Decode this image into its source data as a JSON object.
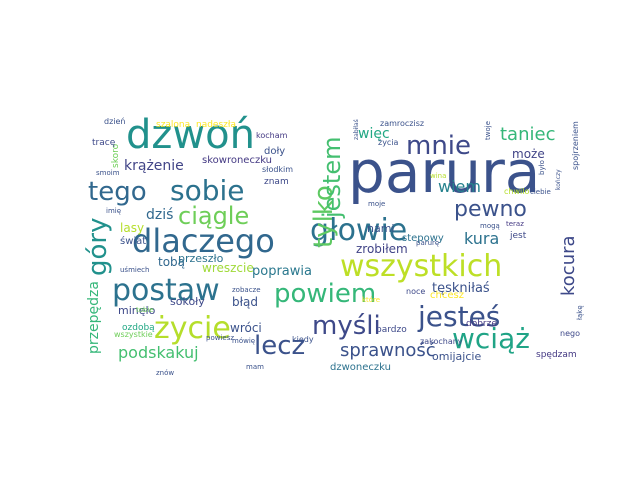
{
  "word_cloud": {
    "words": [
      {
        "text": "parura",
        "color": "#3b528b"
      },
      {
        "text": "dzwoń",
        "color": "#21918c"
      },
      {
        "text": "wszystkich",
        "color": "#bddf26"
      },
      {
        "text": "dlaczego",
        "color": "#31688e"
      },
      {
        "text": "głowie",
        "color": "#2c728e"
      },
      {
        "text": "postaw",
        "color": "#2c728e"
      },
      {
        "text": "sobie",
        "color": "#2c728e"
      },
      {
        "text": "tylko",
        "color": "#5ec962"
      },
      {
        "text": "jesteś",
        "color": "#3b528b"
      },
      {
        "text": "życie",
        "color": "#b5de2b"
      },
      {
        "text": "myśli",
        "color": "#3e4989"
      },
      {
        "text": "lecz",
        "color": "#3b528b"
      },
      {
        "text": "wciąż",
        "color": "#20a486"
      },
      {
        "text": "powiem",
        "color": "#35b779"
      },
      {
        "text": "tego",
        "color": "#31688e"
      },
      {
        "text": "ciągle",
        "color": "#6ece58"
      },
      {
        "text": "góry",
        "color": "#21918c"
      },
      {
        "text": "jestem",
        "color": "#44bf70"
      },
      {
        "text": "mnie",
        "color": "#3e4989"
      },
      {
        "text": "pewno",
        "color": "#3b528b"
      },
      {
        "text": "taniec",
        "color": "#35b779"
      },
      {
        "text": "kocura",
        "color": "#3e4989"
      },
      {
        "text": "sprawność",
        "color": "#3b528b"
      },
      {
        "text": "podskakuj",
        "color": "#44bf70"
      },
      {
        "text": "przepędza",
        "color": "#35b779"
      },
      {
        "text": "więc",
        "color": "#22a884"
      },
      {
        "text": "wiem",
        "color": "#26828e"
      },
      {
        "text": "krążenie",
        "color": "#414487"
      },
      {
        "text": "dziś",
        "color": "#31688e"
      },
      {
        "text": "kura",
        "color": "#2c728e"
      },
      {
        "text": "może",
        "color": "#414487"
      },
      {
        "text": "skowroneczku",
        "color": "#443983"
      },
      {
        "text": "tęskniłaś",
        "color": "#3b528b"
      },
      {
        "text": "poprawia",
        "color": "#2a788e"
      },
      {
        "text": "tobą",
        "color": "#31688e"
      },
      {
        "text": "przeszło",
        "color": "#2c728e"
      },
      {
        "text": "wreszcie",
        "color": "#a0da39"
      },
      {
        "text": "zrobiłem",
        "color": "#414487"
      },
      {
        "text": "nami",
        "color": "#3b528b"
      },
      {
        "text": "stepowy",
        "color": "#2c728e"
      },
      {
        "text": "jest",
        "color": "#3e4989"
      },
      {
        "text": "lasy",
        "color": "#b5de2b"
      },
      {
        "text": "świat",
        "color": "#3b528b"
      },
      {
        "text": "sokoły",
        "color": "#3e4989"
      },
      {
        "text": "błąd",
        "color": "#3b528b"
      },
      {
        "text": "wróci",
        "color": "#3b528b"
      },
      {
        "text": "dzwoneczku",
        "color": "#2c728e"
      },
      {
        "text": "bardzo",
        "color": "#3e4989"
      },
      {
        "text": "omijajcie",
        "color": "#3b528b"
      },
      {
        "text": "zakochany",
        "color": "#3e4989"
      },
      {
        "text": "spędzam",
        "color": "#443983"
      },
      {
        "text": "minęło",
        "color": "#3e4989"
      },
      {
        "text": "ozdobą",
        "color": "#22a884"
      },
      {
        "text": "chcesz",
        "color": "#fde725"
      },
      {
        "text": "dobrze",
        "color": "#443983"
      },
      {
        "text": "noce",
        "color": "#3e4989"
      },
      {
        "text": "nego",
        "color": "#3e4989"
      },
      {
        "text": "znam",
        "color": "#3e4989"
      },
      {
        "text": "doły",
        "color": "#3b528b"
      },
      {
        "text": "słodkim",
        "color": "#3b528b"
      },
      {
        "text": "kocham",
        "color": "#443983"
      },
      {
        "text": "zamroczisz",
        "color": "#3b528b"
      },
      {
        "text": "życia",
        "color": "#3b528b"
      },
      {
        "text": "moje",
        "color": "#3b528b"
      },
      {
        "text": "twoje",
        "color": "#3b528b"
      },
      {
        "text": "chwilo",
        "color": "#b5de2b"
      },
      {
        "text": "ciebie",
        "color": "#3b528b"
      },
      {
        "text": "spojrzeniem",
        "color": "#3b528b"
      },
      {
        "text": "teraz",
        "color": "#443983"
      },
      {
        "text": "kończy",
        "color": "#3b528b"
      },
      {
        "text": "wina",
        "color": "#b5de2b"
      },
      {
        "text": "było",
        "color": "#3b528b"
      },
      {
        "text": "zabiłaś",
        "color": "#3b528b"
      },
      {
        "text": "szalona",
        "color": "#fde725"
      },
      {
        "text": "nadeszła",
        "color": "#fde725"
      },
      {
        "text": "dzień",
        "color": "#3b528b"
      },
      {
        "text": "skoro",
        "color": "#6ece58"
      },
      {
        "text": "tracę",
        "color": "#3e4989"
      },
      {
        "text": "smoim",
        "color": "#3b528b"
      },
      {
        "text": "uśmiech",
        "color": "#3b528b"
      },
      {
        "text": "tobie",
        "color": "#6ece58"
      },
      {
        "text": "wszystkie",
        "color": "#6ece58"
      },
      {
        "text": "mówię",
        "color": "#3b528b"
      },
      {
        "text": "znów",
        "color": "#3b528b"
      },
      {
        "text": "zobacze",
        "color": "#3b528b"
      },
      {
        "text": "powiesz",
        "color": "#3b528b"
      },
      {
        "text": "kiedy",
        "color": "#3b528b"
      },
      {
        "text": "mogą",
        "color": "#3b528b"
      },
      {
        "text": "parurę",
        "color": "#3b528b"
      },
      {
        "text": "imię",
        "color": "#3b528b"
      },
      {
        "text": "które",
        "color": "#fde725"
      },
      {
        "text": "łąkę",
        "color": "#3b528b"
      },
      {
        "text": "mam",
        "color": "#3b528b"
      }
    ]
  }
}
